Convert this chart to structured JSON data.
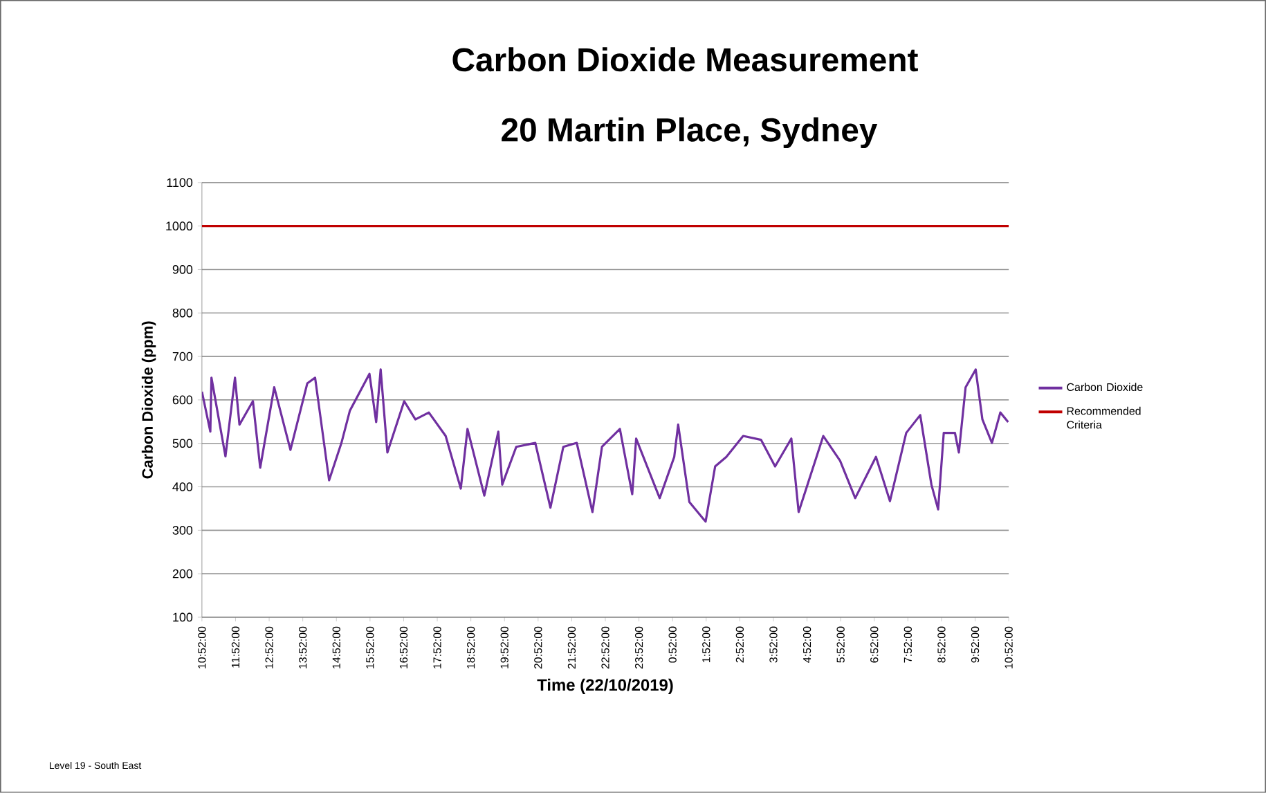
{
  "chart_data": {
    "type": "line",
    "title": "Carbon Dioxide Measurement",
    "subtitle": "20 Martin Place, Sydney",
    "xlabel": "Time (22/10/2019)",
    "ylabel": "Carbon Dioxide (ppm)",
    "annotations": [
      "Level 19 - South East"
    ],
    "xlim": [
      "2019-10-22T10:52",
      "2019-10-23T10:52"
    ],
    "xticks": [
      {
        "value": "2019-10-22T10:52",
        "label": "10:52:00"
      },
      {
        "value": "2019-10-22T11:52",
        "label": "11:52:00"
      },
      {
        "value": "2019-10-22T12:52",
        "label": "12:52:00"
      },
      {
        "value": "2019-10-22T13:52",
        "label": "13:52:00"
      },
      {
        "value": "2019-10-22T14:52",
        "label": "14:52:00"
      },
      {
        "value": "2019-10-22T15:52",
        "label": "15:52:00"
      },
      {
        "value": "2019-10-22T16:52",
        "label": "16:52:00"
      },
      {
        "value": "2019-10-22T17:52",
        "label": "17:52:00"
      },
      {
        "value": "2019-10-22T18:52",
        "label": "18:52:00"
      },
      {
        "value": "2019-10-22T19:52",
        "label": "19:52:00"
      },
      {
        "value": "2019-10-22T20:52",
        "label": "20:52:00"
      },
      {
        "value": "2019-10-22T21:52",
        "label": "21:52:00"
      },
      {
        "value": "2019-10-22T22:52",
        "label": "22:52:00"
      },
      {
        "value": "2019-10-22T23:52",
        "label": "23:52:00"
      },
      {
        "value": "2019-10-23T00:52",
        "label": "0:52:00"
      },
      {
        "value": "2019-10-23T01:52",
        "label": "1:52:00"
      },
      {
        "value": "2019-10-23T02:52",
        "label": "2:52:00"
      },
      {
        "value": "2019-10-23T03:52",
        "label": "3:52:00"
      },
      {
        "value": "2019-10-23T04:52",
        "label": "4:52:00"
      },
      {
        "value": "2019-10-23T05:52",
        "label": "5:52:00"
      },
      {
        "value": "2019-10-23T06:52",
        "label": "6:52:00"
      },
      {
        "value": "2019-10-23T07:52",
        "label": "7:52:00"
      },
      {
        "value": "2019-10-23T08:52",
        "label": "8:52:00"
      },
      {
        "value": "2019-10-23T09:52",
        "label": "9:52:00"
      },
      {
        "value": "2019-10-23T10:52",
        "label": "10:52:00"
      }
    ],
    "ylim": [
      100,
      1100
    ],
    "yticks": [
      100,
      200,
      300,
      400,
      500,
      600,
      700,
      800,
      900,
      1000,
      1100
    ],
    "grid": "y",
    "legend": "right",
    "marker": "none",
    "line_style": "solid",
    "series": [
      {
        "name": "Carbon Dioxide",
        "color": "#7030a0",
        "x": [
          "2019-10-22T10:52",
          "2019-10-22T11:07",
          "2019-10-22T11:09",
          "2019-10-22T11:34",
          "2019-10-22T11:51",
          "2019-10-22T11:59",
          "2019-10-22T12:23",
          "2019-10-22T12:36",
          "2019-10-22T13:01",
          "2019-10-22T13:30",
          "2019-10-22T14:00",
          "2019-10-22T14:14",
          "2019-10-22T14:39",
          "2019-10-22T15:01",
          "2019-10-22T15:16",
          "2019-10-22T15:51",
          "2019-10-22T16:03",
          "2019-10-22T16:11",
          "2019-10-22T16:23",
          "2019-10-22T16:53",
          "2019-10-22T17:13",
          "2019-10-22T17:37",
          "2019-10-22T18:07",
          "2019-10-22T18:34",
          "2019-10-22T18:46",
          "2019-10-22T19:16",
          "2019-10-22T19:41",
          "2019-10-22T19:48",
          "2019-10-22T20:13",
          "2019-10-22T20:47",
          "2019-10-22T21:14",
          "2019-10-22T21:37",
          "2019-10-22T22:01",
          "2019-10-22T22:29",
          "2019-10-22T22:46",
          "2019-10-22T23:18",
          "2019-10-22T23:40",
          "2019-10-22T23:47",
          "2019-10-23T00:29",
          "2019-10-23T00:55",
          "2019-10-23T01:02",
          "2019-10-23T01:22",
          "2019-10-23T01:51",
          "2019-10-23T02:08",
          "2019-10-23T02:28",
          "2019-10-23T02:58",
          "2019-10-23T03:30",
          "2019-10-23T03:55",
          "2019-10-23T04:24",
          "2019-10-23T04:37",
          "2019-10-23T05:21",
          "2019-10-23T05:51",
          "2019-10-23T06:18",
          "2019-10-23T06:55",
          "2019-10-23T07:20",
          "2019-10-23T07:49",
          "2019-10-23T08:14",
          "2019-10-23T08:34",
          "2019-10-23T08:46",
          "2019-10-23T08:56",
          "2019-10-23T09:16",
          "2019-10-23T09:23",
          "2019-10-23T09:35",
          "2019-10-23T09:53",
          "2019-10-23T10:05",
          "2019-10-23T10:22",
          "2019-10-23T10:37",
          "2019-10-23T10:51"
        ],
        "values": [
          619,
          527,
          651,
          470,
          651,
          543,
          597,
          444,
          629,
          485,
          638,
          651,
          415,
          501,
          575,
          660,
          549,
          670,
          479,
          597,
          555,
          571,
          517,
          396,
          533,
          380,
          527,
          405,
          492,
          501,
          352,
          492,
          501,
          342,
          492,
          533,
          383,
          511,
          374,
          469,
          543,
          365,
          320,
          447,
          469,
          517,
          508,
          447,
          511,
          342,
          517,
          460,
          374,
          469,
          367,
          524,
          565,
          405,
          348,
          524,
          524,
          479,
          629,
          670,
          555,
          501,
          571,
          549
        ]
      },
      {
        "name": "Recommended Criteria",
        "color": "#c00000",
        "x": [
          "2019-10-22T10:52",
          "2019-10-23T10:52"
        ],
        "values": [
          1000,
          1000
        ]
      }
    ]
  }
}
